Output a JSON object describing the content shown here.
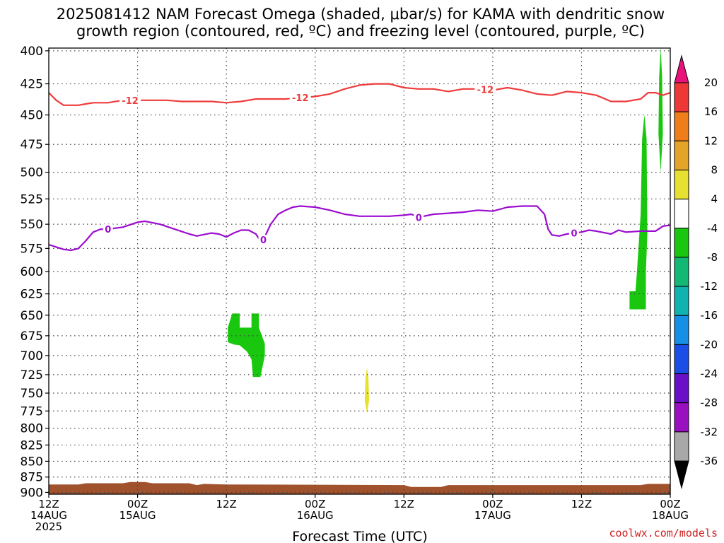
{
  "title_line1": "2025081412 NAM Forecast Omega (shaded, μbar/s) for KAMA with dendritic snow",
  "title_line2": "growth region (contoured, red, ºC) and freezing level (contoured, purple, ºC)",
  "credit": "coolwx.com/models",
  "chart_data": {
    "type": "time-height",
    "xlabel": "Forecast Time (UTC)",
    "x_range_hours": [
      0,
      84
    ],
    "y_range_hPa": [
      398,
      903
    ],
    "y_scale": "log-pressure",
    "grid": "dotted",
    "y_ticks": [
      "400",
      "425",
      "450",
      "475",
      "500",
      "525",
      "550",
      "575",
      "600",
      "625",
      "650",
      "675",
      "700",
      "725",
      "750",
      "775",
      "800",
      "825",
      "850",
      "875",
      "900"
    ],
    "x_ticks": [
      {
        "hour": 0,
        "line1": "12Z",
        "line2": "14AUG",
        "line3": "2025"
      },
      {
        "hour": 12,
        "line1": "00Z",
        "line2": "15AUG",
        "line3": ""
      },
      {
        "hour": 24,
        "line1": "12Z",
        "line2": "",
        "line3": ""
      },
      {
        "hour": 36,
        "line1": "00Z",
        "line2": "16AUG",
        "line3": ""
      },
      {
        "hour": 48,
        "line1": "12Z",
        "line2": "",
        "line3": ""
      },
      {
        "hour": 60,
        "line1": "00Z",
        "line2": "17AUG",
        "line3": ""
      },
      {
        "hour": 72,
        "line1": "12Z",
        "line2": "",
        "line3": ""
      },
      {
        "hour": 84,
        "line1": "00Z",
        "line2": "18AUG",
        "line3": ""
      }
    ],
    "colorbar": {
      "labels": [
        "20",
        "16",
        "12",
        "8",
        "4",
        "-4",
        "-8",
        "-12",
        "-16",
        "-20",
        "-24",
        "-28",
        "-32",
        "-36"
      ],
      "colors": [
        "#e8127a",
        "#ee3838",
        "#ef7d1a",
        "#e3a428",
        "#e6e030",
        "#ffffff",
        "#19c80e",
        "#12b874",
        "#10b3b0",
        "#1590e6",
        "#1a4ee6",
        "#6a0fc8",
        "#9a0fc0",
        "#a8a8a8",
        "#000000"
      ]
    },
    "contours": [
      {
        "level": "-12",
        "color": "#ef3c3c",
        "label_hours": [
          11,
          34,
          59
        ],
        "points": [
          [
            0,
            432
          ],
          [
            1,
            438
          ],
          [
            2,
            442
          ],
          [
            3,
            442
          ],
          [
            4,
            442
          ],
          [
            5,
            441
          ],
          [
            6,
            440
          ],
          [
            8,
            440
          ],
          [
            10,
            438
          ],
          [
            12,
            438
          ],
          [
            14,
            438
          ],
          [
            16,
            438
          ],
          [
            18,
            439
          ],
          [
            20,
            439
          ],
          [
            22,
            439
          ],
          [
            24,
            440
          ],
          [
            26,
            439
          ],
          [
            28,
            437
          ],
          [
            30,
            437
          ],
          [
            32,
            437
          ],
          [
            34,
            436
          ],
          [
            36,
            435
          ],
          [
            38,
            433
          ],
          [
            40,
            429
          ],
          [
            42,
            426
          ],
          [
            44,
            425
          ],
          [
            46,
            425
          ],
          [
            48,
            428
          ],
          [
            50,
            429
          ],
          [
            52,
            429
          ],
          [
            54,
            431
          ],
          [
            56,
            429
          ],
          [
            58,
            429
          ],
          [
            60,
            430
          ],
          [
            62,
            428
          ],
          [
            64,
            430
          ],
          [
            66,
            433
          ],
          [
            68,
            434
          ],
          [
            70,
            431
          ],
          [
            72,
            432
          ],
          [
            74,
            434
          ],
          [
            76,
            439
          ],
          [
            78,
            439
          ],
          [
            80,
            437
          ],
          [
            81,
            432
          ],
          [
            82,
            432
          ],
          [
            83,
            434
          ],
          [
            84,
            432
          ]
        ]
      },
      {
        "level": "0",
        "color": "#9b0cd0",
        "label_hours": [
          8,
          29,
          50,
          71
        ],
        "points": [
          [
            0,
            571
          ],
          [
            2,
            576
          ],
          [
            3,
            577
          ],
          [
            4,
            575
          ],
          [
            5,
            567
          ],
          [
            6,
            558
          ],
          [
            7,
            555
          ],
          [
            8,
            555
          ],
          [
            10,
            553
          ],
          [
            12,
            548
          ],
          [
            13,
            547
          ],
          [
            15,
            550
          ],
          [
            17,
            555
          ],
          [
            19,
            560
          ],
          [
            20,
            562
          ],
          [
            22,
            559
          ],
          [
            23,
            560
          ],
          [
            24,
            563
          ],
          [
            25,
            559
          ],
          [
            26,
            556
          ],
          [
            27,
            556
          ],
          [
            28,
            560
          ],
          [
            28.5,
            566
          ],
          [
            29,
            566
          ],
          [
            30,
            550
          ],
          [
            31,
            540
          ],
          [
            32,
            536
          ],
          [
            33,
            533
          ],
          [
            34,
            532
          ],
          [
            36,
            533
          ],
          [
            38,
            536
          ],
          [
            40,
            540
          ],
          [
            42,
            542
          ],
          [
            44,
            542
          ],
          [
            46,
            542
          ],
          [
            48,
            541
          ],
          [
            49,
            540
          ],
          [
            50,
            543
          ],
          [
            52,
            540
          ],
          [
            54,
            539
          ],
          [
            56,
            538
          ],
          [
            58,
            536
          ],
          [
            60,
            537
          ],
          [
            62,
            533
          ],
          [
            64,
            532
          ],
          [
            66,
            532
          ],
          [
            67,
            540
          ],
          [
            67.5,
            555
          ],
          [
            68,
            561
          ],
          [
            69,
            562
          ],
          [
            70,
            560
          ],
          [
            71,
            559
          ],
          [
            72,
            558
          ],
          [
            73,
            556
          ],
          [
            74,
            557
          ],
          [
            76,
            560
          ],
          [
            77,
            556
          ],
          [
            78,
            558
          ],
          [
            80,
            557
          ],
          [
            82,
            557
          ],
          [
            83,
            552
          ],
          [
            84,
            551
          ]
        ]
      }
    ],
    "omega_regions": [
      {
        "value_range": "-4 to -8",
        "color": "#19c80e",
        "polygon": [
          [
            24.2,
            683
          ],
          [
            24.2,
            665
          ],
          [
            24.8,
            648
          ],
          [
            25.8,
            648
          ],
          [
            25.8,
            665
          ],
          [
            26.6,
            665
          ],
          [
            27.4,
            665
          ],
          [
            27.4,
            648
          ],
          [
            28.4,
            648
          ],
          [
            28.4,
            665
          ],
          [
            29.2,
            685
          ],
          [
            29.2,
            700
          ],
          [
            28.6,
            728
          ],
          [
            27.6,
            728
          ],
          [
            27.4,
            705
          ],
          [
            26.8,
            695
          ],
          [
            25.8,
            687
          ],
          [
            25.0,
            686
          ]
        ]
      },
      {
        "value_range": "-4 to -8",
        "color": "#19c80e",
        "polygon": [
          [
            78.5,
            643
          ],
          [
            78.5,
            622
          ],
          [
            79.3,
            622
          ],
          [
            79.5,
            600
          ],
          [
            80.0,
            540
          ],
          [
            80.2,
            470
          ],
          [
            80.5,
            450
          ],
          [
            80.8,
            470
          ],
          [
            80.9,
            560
          ],
          [
            80.7,
            600
          ],
          [
            80.7,
            643
          ]
        ]
      },
      {
        "value_range": "-4 to -8",
        "color": "#19c80e",
        "polygon": [
          [
            82.4,
            466
          ],
          [
            82.5,
            420
          ],
          [
            82.7,
            398
          ],
          [
            82.9,
            420
          ],
          [
            83.0,
            466
          ],
          [
            82.7,
            500
          ]
        ]
      },
      {
        "value_range": "4 to 8",
        "color": "#e6e030",
        "polygon": [
          [
            42.7,
            760
          ],
          [
            42.8,
            730
          ],
          [
            43.0,
            716
          ],
          [
            43.2,
            730
          ],
          [
            43.3,
            760
          ],
          [
            43.0,
            778
          ]
        ]
      }
    ],
    "terrain": {
      "color": "#a0522d",
      "note": "surface"
    }
  }
}
